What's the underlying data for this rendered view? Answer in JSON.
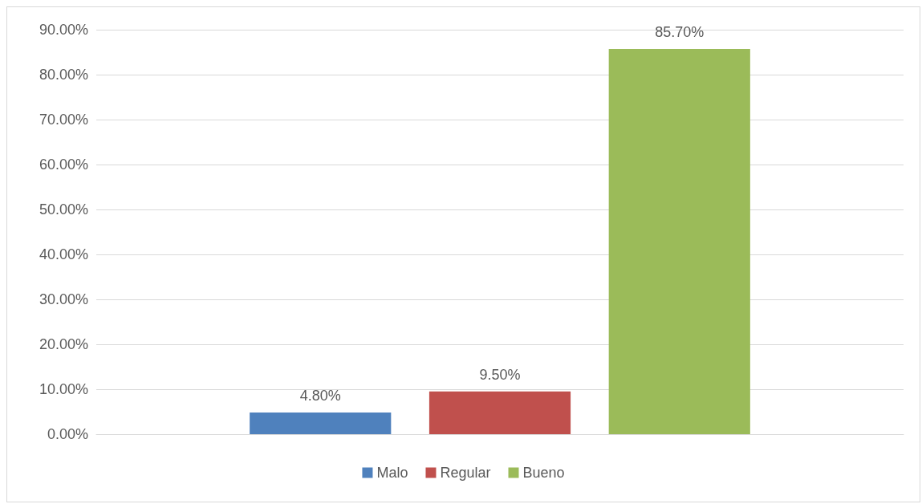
{
  "chart_data": {
    "type": "bar",
    "categories": [
      null
    ],
    "series": [
      {
        "name": "Malo",
        "color": "#4f81bd",
        "values": [
          4.8
        ],
        "value_labels": [
          "4.80%"
        ]
      },
      {
        "name": "Regular",
        "color": "#c0504d",
        "values": [
          9.5
        ],
        "value_labels": [
          "9.50%"
        ]
      },
      {
        "name": "Bueno",
        "color": "#9bbb59",
        "values": [
          85.7
        ],
        "value_labels": [
          "85.70%"
        ]
      }
    ],
    "ylim": [
      0,
      90
    ],
    "yticks": [
      {
        "value": 0,
        "label": "0.00%"
      },
      {
        "value": 10,
        "label": "10.00%"
      },
      {
        "value": 20,
        "label": "20.00%"
      },
      {
        "value": 30,
        "label": "30.00%"
      },
      {
        "value": 40,
        "label": "40.00%"
      },
      {
        "value": 50,
        "label": "50.00%"
      },
      {
        "value": 60,
        "label": "60.00%"
      },
      {
        "value": 70,
        "label": "70.00%"
      },
      {
        "value": 80,
        "label": "80.00%"
      },
      {
        "value": 90,
        "label": "90.00%"
      }
    ],
    "grid": "y",
    "legend": "bottom"
  }
}
